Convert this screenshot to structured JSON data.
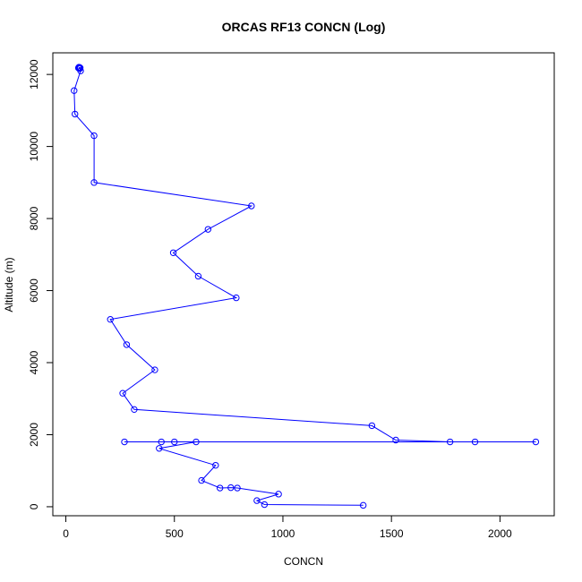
{
  "chart_data": {
    "type": "line",
    "title": "ORCAS RF13 CONCN (Log)",
    "xlabel": "CONCN",
    "ylabel": "Altitude (m)",
    "xlim": [
      -60,
      2250
    ],
    "ylim": [
      -250,
      12600
    ],
    "x_ticks": [
      0,
      500,
      1000,
      1500,
      2000
    ],
    "y_ticks": [
      0,
      2000,
      4000,
      6000,
      8000,
      10000,
      12000
    ],
    "x_tick_labels": [
      "0",
      "500",
      "1000",
      "1500",
      "2000"
    ],
    "y_tick_labels": [
      "0",
      "2000",
      "4000",
      "6000",
      "8000",
      "10000",
      "12000"
    ],
    "color": "#0000ff",
    "marker": "open-circle",
    "grid": false,
    "series": [
      {
        "points": [
          {
            "x": 60,
            "y": 12200
          },
          {
            "x": 62,
            "y": 12195
          },
          {
            "x": 64,
            "y": 12190
          },
          {
            "x": 66,
            "y": 12185
          },
          {
            "x": 58,
            "y": 12180
          },
          {
            "x": 61,
            "y": 12175
          },
          {
            "x": 63,
            "y": 12170
          },
          {
            "x": 65,
            "y": 12165
          },
          {
            "x": 68,
            "y": 12100
          },
          {
            "x": 38,
            "y": 11550
          },
          {
            "x": 42,
            "y": 10900
          },
          {
            "x": 130,
            "y": 10300
          },
          {
            "x": 130,
            "y": 9000
          },
          {
            "x": 855,
            "y": 8350
          },
          {
            "x": 655,
            "y": 7700
          },
          {
            "x": 495,
            "y": 7050
          },
          {
            "x": 610,
            "y": 6400
          },
          {
            "x": 785,
            "y": 5800
          },
          {
            "x": 205,
            "y": 5200
          },
          {
            "x": 280,
            "y": 4500
          },
          {
            "x": 410,
            "y": 3800
          },
          {
            "x": 262,
            "y": 3150
          },
          {
            "x": 315,
            "y": 2700
          },
          {
            "x": 1410,
            "y": 2250
          },
          {
            "x": 1520,
            "y": 1850
          },
          {
            "x": 1770,
            "y": 1800
          },
          {
            "x": 1885,
            "y": 1800
          },
          {
            "x": 2165,
            "y": 1800
          },
          {
            "x": 270,
            "y": 1800
          },
          {
            "x": 440,
            "y": 1800
          },
          {
            "x": 500,
            "y": 1800
          },
          {
            "x": 600,
            "y": 1800
          },
          {
            "x": 430,
            "y": 1620
          },
          {
            "x": 690,
            "y": 1150
          },
          {
            "x": 625,
            "y": 730
          },
          {
            "x": 710,
            "y": 520
          },
          {
            "x": 760,
            "y": 530
          },
          {
            "x": 790,
            "y": 520
          },
          {
            "x": 980,
            "y": 350
          },
          {
            "x": 880,
            "y": 170
          },
          {
            "x": 915,
            "y": 60
          },
          {
            "x": 1370,
            "y": 40
          }
        ]
      }
    ]
  }
}
